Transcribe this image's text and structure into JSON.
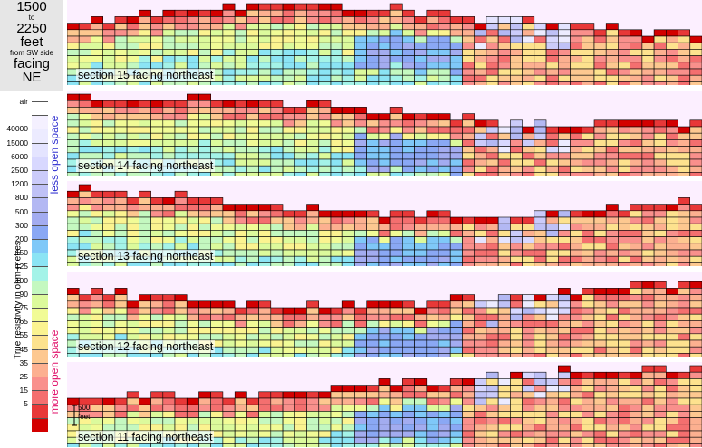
{
  "title": {
    "range_from": "1500",
    "range_to_word": "to",
    "range_to": "2250",
    "units": "feet",
    "origin": "from SW side",
    "facing_word": "facing",
    "direction": "NE"
  },
  "legend": {
    "y_label": "True resistivity in ohm-metres",
    "less_label": "less open space",
    "more_label": "more open space",
    "entries": [
      {
        "label": "air",
        "color": "#ffffff"
      },
      {
        "label": "",
        "color": "#f4f0ff"
      },
      {
        "label": "40000",
        "color": "#ecebff"
      },
      {
        "label": "15000",
        "color": "#e4e4ff"
      },
      {
        "label": "6000",
        "color": "#d8d8ff"
      },
      {
        "label": "2500",
        "color": "#cbcbfa"
      },
      {
        "label": "1200",
        "color": "#bfc1f6"
      },
      {
        "label": "800",
        "color": "#b3b8f3"
      },
      {
        "label": "500",
        "color": "#a3acf0"
      },
      {
        "label": "300",
        "color": "#8aa8f4"
      },
      {
        "label": "200",
        "color": "#7fc8f8"
      },
      {
        "label": "150",
        "color": "#8be4f4"
      },
      {
        "label": "125",
        "color": "#a4f3e8"
      },
      {
        "label": "100",
        "color": "#c4f8c0"
      },
      {
        "label": "90",
        "color": "#dcfa9c"
      },
      {
        "label": "75",
        "color": "#f1fb96"
      },
      {
        "label": "65",
        "color": "#fbf390"
      },
      {
        "label": "55",
        "color": "#fde28e"
      },
      {
        "label": "45",
        "color": "#fdc890"
      },
      {
        "label": "35",
        "color": "#fcb090"
      },
      {
        "label": "25",
        "color": "#f9908c"
      },
      {
        "label": "15",
        "color": "#f46f6f"
      },
      {
        "label": "5",
        "color": "#e83838"
      },
      {
        "label": "",
        "color": "#d30000"
      }
    ]
  },
  "scale_bar": {
    "label_top": "500",
    "label_bottom": "feet"
  },
  "sections": [
    {
      "caption": "section 15 facing northeast"
    },
    {
      "caption": "section 14 facing northeast"
    },
    {
      "caption": "section 13 facing northeast"
    },
    {
      "caption": "section 12 facing northeast"
    },
    {
      "caption": "section 11 facing northeast"
    }
  ]
}
